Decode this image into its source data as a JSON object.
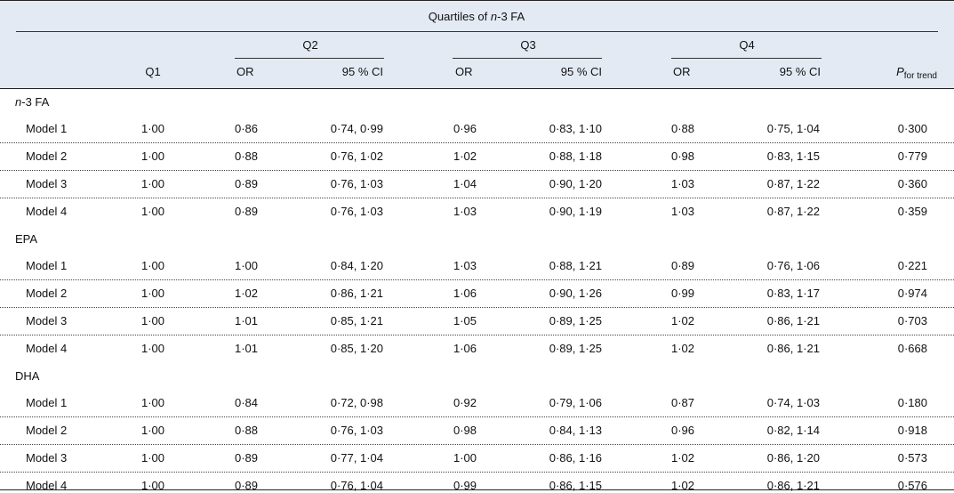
{
  "header": {
    "span_title_italic": "n",
    "span_title_rest": "-3 FA",
    "span_title_prefix": "Quartiles of ",
    "q1": "Q1",
    "q2": "Q2",
    "q3": "Q3",
    "q4": "Q4",
    "or": "OR",
    "ci": "95 % CI",
    "p_main": "P",
    "p_sub": "for trend"
  },
  "sections": [
    {
      "label_italic": "n",
      "label_rest": "-3 FA",
      "rows": [
        {
          "model": "Model 1",
          "q1": "1·00",
          "q2_or": "0·86",
          "q2_ci": "0·74, 0·99",
          "q3_or": "0·96",
          "q3_ci": "0·83, 1·10",
          "q4_or": "0·88",
          "q4_ci": "0·75, 1·04",
          "p": "0·300"
        },
        {
          "model": "Model 2",
          "q1": "1·00",
          "q2_or": "0·88",
          "q2_ci": "0·76, 1·02",
          "q3_or": "1·02",
          "q3_ci": "0·88, 1·18",
          "q4_or": "0·98",
          "q4_ci": "0·83, 1·15",
          "p": "0·779"
        },
        {
          "model": "Model 3",
          "q1": "1·00",
          "q2_or": "0·89",
          "q2_ci": "0·76, 1·03",
          "q3_or": "1·04",
          "q3_ci": "0·90, 1·20",
          "q4_or": "1·03",
          "q4_ci": "0·87, 1·22",
          "p": "0·360"
        },
        {
          "model": "Model 4",
          "q1": "1·00",
          "q2_or": "0·89",
          "q2_ci": "0·76, 1·03",
          "q3_or": "1·03",
          "q3_ci": "0·90, 1·19",
          "q4_or": "1·03",
          "q4_ci": "0·87, 1·22",
          "p": "0·359"
        }
      ]
    },
    {
      "label_italic": "",
      "label_rest": "EPA",
      "rows": [
        {
          "model": "Model 1",
          "q1": "1·00",
          "q2_or": "1·00",
          "q2_ci": "0·84, 1·20",
          "q3_or": "1·03",
          "q3_ci": "0·88, 1·21",
          "q4_or": "0·89",
          "q4_ci": "0·76, 1·06",
          "p": "0·221"
        },
        {
          "model": "Model 2",
          "q1": "1·00",
          "q2_or": "1·02",
          "q2_ci": "0·86, 1·21",
          "q3_or": "1·06",
          "q3_ci": "0·90, 1·26",
          "q4_or": "0·99",
          "q4_ci": "0·83, 1·17",
          "p": "0·974"
        },
        {
          "model": "Model 3",
          "q1": "1·00",
          "q2_or": "1·01",
          "q2_ci": "0·85, 1·21",
          "q3_or": "1·05",
          "q3_ci": "0·89, 1·25",
          "q4_or": "1·02",
          "q4_ci": "0·86, 1·21",
          "p": "0·703"
        },
        {
          "model": "Model 4",
          "q1": "1·00",
          "q2_or": "1·01",
          "q2_ci": "0·85, 1·20",
          "q3_or": "1·06",
          "q3_ci": "0·89, 1·25",
          "q4_or": "1·02",
          "q4_ci": "0·86, 1·21",
          "p": "0·668"
        }
      ]
    },
    {
      "label_italic": "",
      "label_rest": "DHA",
      "rows": [
        {
          "model": "Model 1",
          "q1": "1·00",
          "q2_or": "0·84",
          "q2_ci": "0·72, 0·98",
          "q3_or": "0·92",
          "q3_ci": "0·79, 1·06",
          "q4_or": "0·87",
          "q4_ci": "0·74, 1·03",
          "p": "0·180"
        },
        {
          "model": "Model 2",
          "q1": "1·00",
          "q2_or": "0·88",
          "q2_ci": "0·76, 1·03",
          "q3_or": "0·98",
          "q3_ci": "0·84, 1·13",
          "q4_or": "0·96",
          "q4_ci": "0·82, 1·14",
          "p": "0·918"
        },
        {
          "model": "Model 3",
          "q1": "1·00",
          "q2_or": "0·89",
          "q2_ci": "0·77, 1·04",
          "q3_or": "1·00",
          "q3_ci": "0·86, 1·16",
          "q4_or": "1·02",
          "q4_ci": "0·86, 1·20",
          "p": "0·573"
        },
        {
          "model": "Model 4",
          "q1": "1·00",
          "q2_or": "0·89",
          "q2_ci": "0·76, 1·04",
          "q3_or": "0·99",
          "q3_ci": "0·86, 1·15",
          "q4_or": "1·02",
          "q4_ci": "0·86, 1·21",
          "p": "0·576"
        }
      ]
    }
  ]
}
